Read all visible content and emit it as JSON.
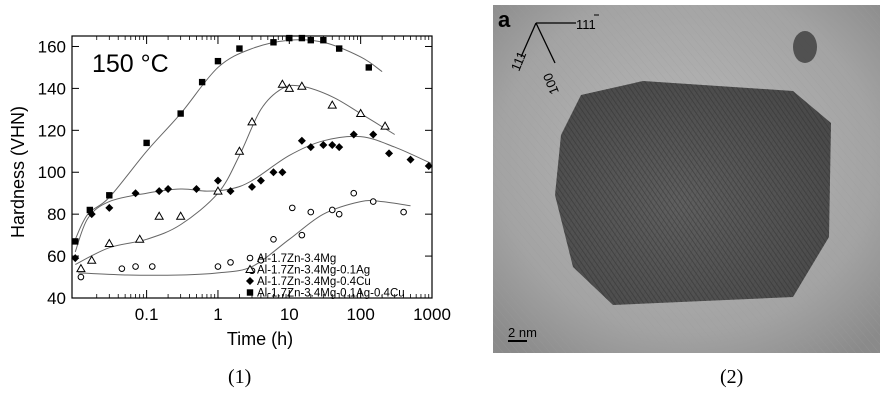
{
  "figure": {
    "captions": [
      "(1)",
      "(2)"
    ]
  },
  "chart_data": {
    "type": "scatter",
    "annotation": "150 °C",
    "ylabel": "Hardness (VHN)",
    "xlabel": "Time (h)",
    "x_scale": "log",
    "xlim": [
      0.009,
      1000
    ],
    "ylim": [
      40,
      165
    ],
    "x_ticks": [
      0.1,
      1,
      10,
      100,
      1000
    ],
    "x_tick_labels": [
      "0.1",
      "1",
      "10",
      "100",
      "1000"
    ],
    "y_ticks": [
      40,
      60,
      80,
      100,
      120,
      140,
      160
    ],
    "y_tick_labels": [
      "40",
      "60",
      "80",
      "100",
      "120",
      "140",
      "160"
    ],
    "legend_position": "bottom-right",
    "series": [
      {
        "name": "Al-1.7Zn-3.4Mg",
        "marker": "open-circle",
        "points": [
          [
            0.012,
            50
          ],
          [
            0.045,
            54
          ],
          [
            0.07,
            55
          ],
          [
            0.12,
            55
          ],
          [
            1,
            55
          ],
          [
            1.5,
            57
          ],
          [
            3,
            53
          ],
          [
            4,
            58
          ],
          [
            6,
            68
          ],
          [
            11,
            83
          ],
          [
            15,
            70
          ],
          [
            20,
            81
          ],
          [
            40,
            82
          ],
          [
            50,
            80
          ],
          [
            80,
            90
          ],
          [
            150,
            86
          ],
          [
            400,
            81
          ]
        ],
        "curve": [
          [
            0.011,
            52
          ],
          [
            0.05,
            51
          ],
          [
            0.3,
            51
          ],
          [
            1,
            52
          ],
          [
            3,
            55
          ],
          [
            10,
            68
          ],
          [
            30,
            80
          ],
          [
            100,
            86
          ],
          [
            200,
            86
          ],
          [
            500,
            84
          ]
        ]
      },
      {
        "name": "Al-1.7Zn-3.4Mg-0.1Ag",
        "marker": "open-triangle",
        "points": [
          [
            0.012,
            54
          ],
          [
            0.017,
            58
          ],
          [
            0.03,
            66
          ],
          [
            0.08,
            68
          ],
          [
            0.15,
            79
          ],
          [
            0.3,
            79
          ],
          [
            1,
            91
          ],
          [
            2,
            110
          ],
          [
            3,
            124
          ],
          [
            8,
            142
          ],
          [
            10,
            140
          ],
          [
            15,
            141
          ],
          [
            40,
            132
          ],
          [
            100,
            128
          ],
          [
            220,
            122
          ]
        ],
        "curve": [
          [
            0.01,
            56
          ],
          [
            0.03,
            64
          ],
          [
            0.1,
            68
          ],
          [
            0.3,
            75
          ],
          [
            1,
            90
          ],
          [
            2,
            108
          ],
          [
            4,
            130
          ],
          [
            8,
            140
          ],
          [
            15,
            141
          ],
          [
            40,
            136
          ],
          [
            100,
            128
          ],
          [
            300,
            118
          ]
        ]
      },
      {
        "name": "Al-1.7Zn-3.4Mg-0.4Cu",
        "marker": "filled-diamond",
        "points": [
          [
            0.01,
            59
          ],
          [
            0.017,
            80
          ],
          [
            0.03,
            83
          ],
          [
            0.07,
            90
          ],
          [
            0.15,
            91
          ],
          [
            0.2,
            92
          ],
          [
            0.5,
            92
          ],
          [
            1,
            96
          ],
          [
            1.5,
            91
          ],
          [
            3,
            93
          ],
          [
            4,
            96
          ],
          [
            6,
            100
          ],
          [
            8,
            100
          ],
          [
            15,
            115
          ],
          [
            20,
            112
          ],
          [
            30,
            113
          ],
          [
            40,
            113
          ],
          [
            50,
            112
          ],
          [
            80,
            118
          ],
          [
            150,
            118
          ],
          [
            250,
            109
          ],
          [
            500,
            106
          ],
          [
            900,
            103
          ]
        ],
        "curve": [
          [
            0.01,
            62
          ],
          [
            0.015,
            78
          ],
          [
            0.03,
            86
          ],
          [
            0.1,
            90
          ],
          [
            0.3,
            92
          ],
          [
            0.7,
            91
          ],
          [
            1.5,
            92
          ],
          [
            3,
            96
          ],
          [
            10,
            108
          ],
          [
            30,
            115
          ],
          [
            100,
            117
          ],
          [
            300,
            112
          ],
          [
            1000,
            104
          ]
        ]
      },
      {
        "name": "Al-1.7Zn-3.4Mg-0.1Ag-0.4Cu",
        "marker": "filled-square",
        "points": [
          [
            0.01,
            67
          ],
          [
            0.016,
            82
          ],
          [
            0.03,
            89
          ],
          [
            0.1,
            114
          ],
          [
            0.3,
            128
          ],
          [
            0.6,
            143
          ],
          [
            1,
            153
          ],
          [
            2,
            159
          ],
          [
            6,
            162
          ],
          [
            10,
            164
          ],
          [
            15,
            164
          ],
          [
            20,
            163
          ],
          [
            30,
            163
          ],
          [
            50,
            159
          ],
          [
            130,
            150
          ]
        ],
        "curve": [
          [
            0.01,
            68
          ],
          [
            0.015,
            80
          ],
          [
            0.03,
            88
          ],
          [
            0.1,
            110
          ],
          [
            0.3,
            128
          ],
          [
            1,
            150
          ],
          [
            3,
            159
          ],
          [
            10,
            163
          ],
          [
            30,
            162
          ],
          [
            100,
            155
          ],
          [
            200,
            148
          ]
        ]
      }
    ]
  },
  "tem_image": {
    "panel_label": "a",
    "directions": [
      "111",
      "100",
      "111"
    ],
    "scale_bar": "2 nm"
  }
}
